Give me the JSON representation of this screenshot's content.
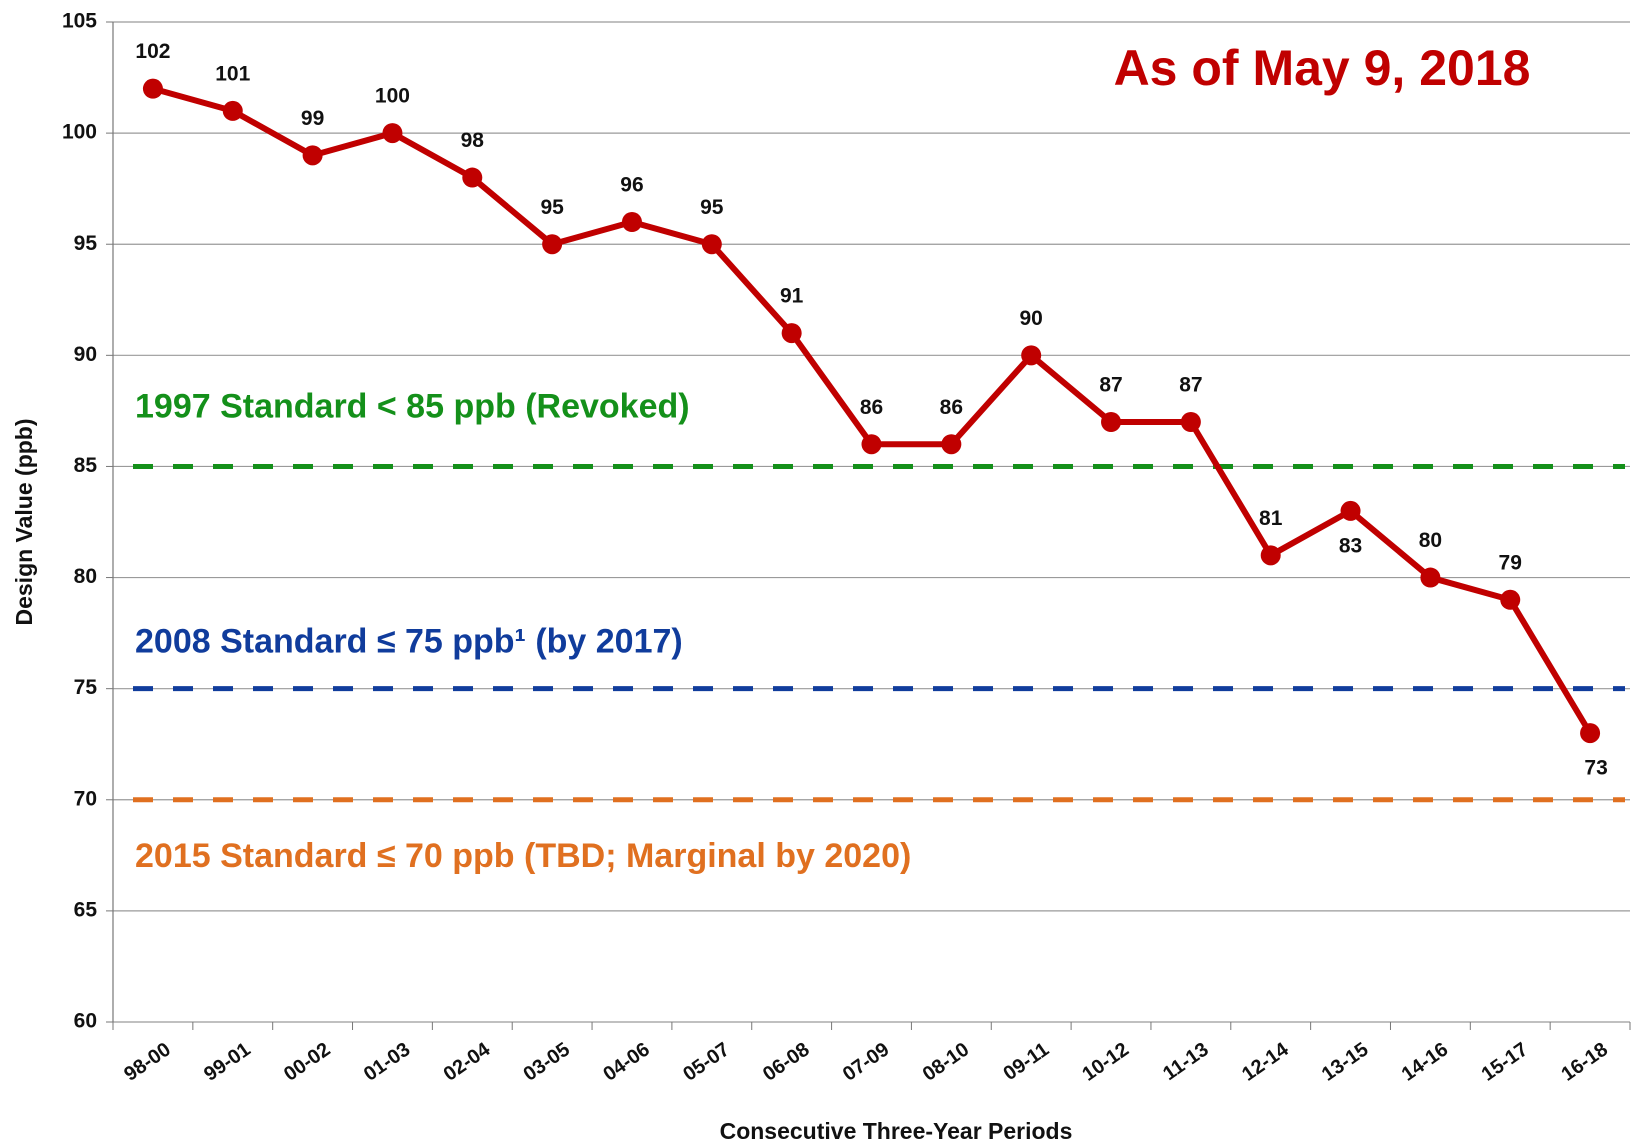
{
  "chart_data": {
    "type": "line",
    "annotation": "As of May 9, 2018",
    "x_label": "Consecutive Three-Year Periods",
    "y_label": "Design Value (ppb)",
    "categories": [
      "98-00",
      "99-01",
      "00-02",
      "01-03",
      "02-04",
      "03-05",
      "04-06",
      "05-07",
      "06-08",
      "07-09",
      "08-10",
      "09-11",
      "10-12",
      "11-13",
      "12-14",
      "13-15",
      "14-16",
      "15-17",
      "16-18"
    ],
    "series": [
      {
        "color": "#c00000",
        "values": [
          102,
          101,
          99,
          100,
          98,
          95,
          96,
          95,
          91,
          86,
          86,
          90,
          87,
          87,
          81,
          83,
          80,
          79,
          73
        ]
      }
    ],
    "reference_lines": [
      {
        "value": 85,
        "label": "1997 Standard < 85 ppb (Revoked)",
        "color": "#14901a"
      },
      {
        "value": 75,
        "label": "2008 Standard ≤ 75 ppb¹ (by 2017)",
        "color": "#103c9c"
      },
      {
        "value": 70,
        "label": "2015 Standard ≤ 70 ppb (TBD; Marginal by 2020)",
        "color": "#e07020"
      }
    ],
    "ylim": [
      60,
      105
    ],
    "yticks": [
      60,
      65,
      70,
      75,
      80,
      85,
      90,
      95,
      100,
      105
    ],
    "grid": true
  }
}
